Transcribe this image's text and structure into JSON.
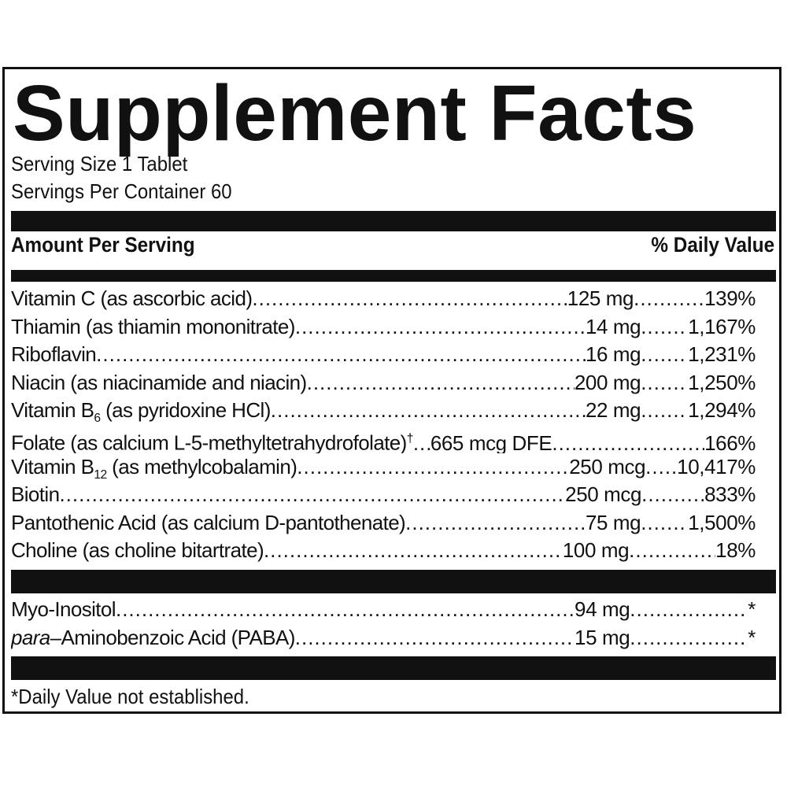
{
  "title": "Supplement Facts",
  "serving_size": "Serving Size 1 Tablet",
  "servings_per_container": "Servings Per Container 60",
  "header": {
    "amount_label": "Amount Per Serving",
    "dv_label": "% Daily Value"
  },
  "nutrients": [
    {
      "name": "Vitamin C (as ascorbic acid)",
      "amount": "125 mg",
      "dv": "139%"
    },
    {
      "name": "Thiamin (as thiamin mononitrate)",
      "amount": "14 mg",
      "dv": "1,167%"
    },
    {
      "name": "Riboflavin",
      "amount": "16 mg",
      "dv": "1,231%"
    },
    {
      "name": "Niacin (as niacinamide and niacin)",
      "amount": "200 mg",
      "dv": "1,250%"
    },
    {
      "name_pre": "Vitamin B",
      "name_sub": "6",
      "name_post": " (as pyridoxine HCl)",
      "amount": "22 mg",
      "dv": "1,294%"
    },
    {
      "name_pre": "Folate (as calcium L-5-methyltetrahydrofolate)",
      "name_sup": "†",
      "amount": "665 mcg DFE",
      "dv": "166%"
    },
    {
      "name_pre": "Vitamin B",
      "name_sub": "12",
      "name_post": " (as methylcobalamin)",
      "amount": "250 mcg",
      "dv": "10,417%"
    },
    {
      "name": "Biotin",
      "amount": "250 mcg",
      "dv": "833%"
    },
    {
      "name": "Pantothenic Acid (as calcium D-pantothenate)",
      "amount": "75 mg",
      "dv": "1,500%"
    },
    {
      "name": "Choline (as choline bitartrate)",
      "amount": "100 mg",
      "dv": "18%"
    }
  ],
  "other": [
    {
      "name": "Myo-Inositol",
      "amount": "94 mg",
      "dv": "*"
    },
    {
      "name_italic": "para",
      "name_post": "–Aminobenzoic Acid (PABA)",
      "amount": "15 mg",
      "dv": "*"
    }
  ],
  "footnote": "*Daily Value not established."
}
